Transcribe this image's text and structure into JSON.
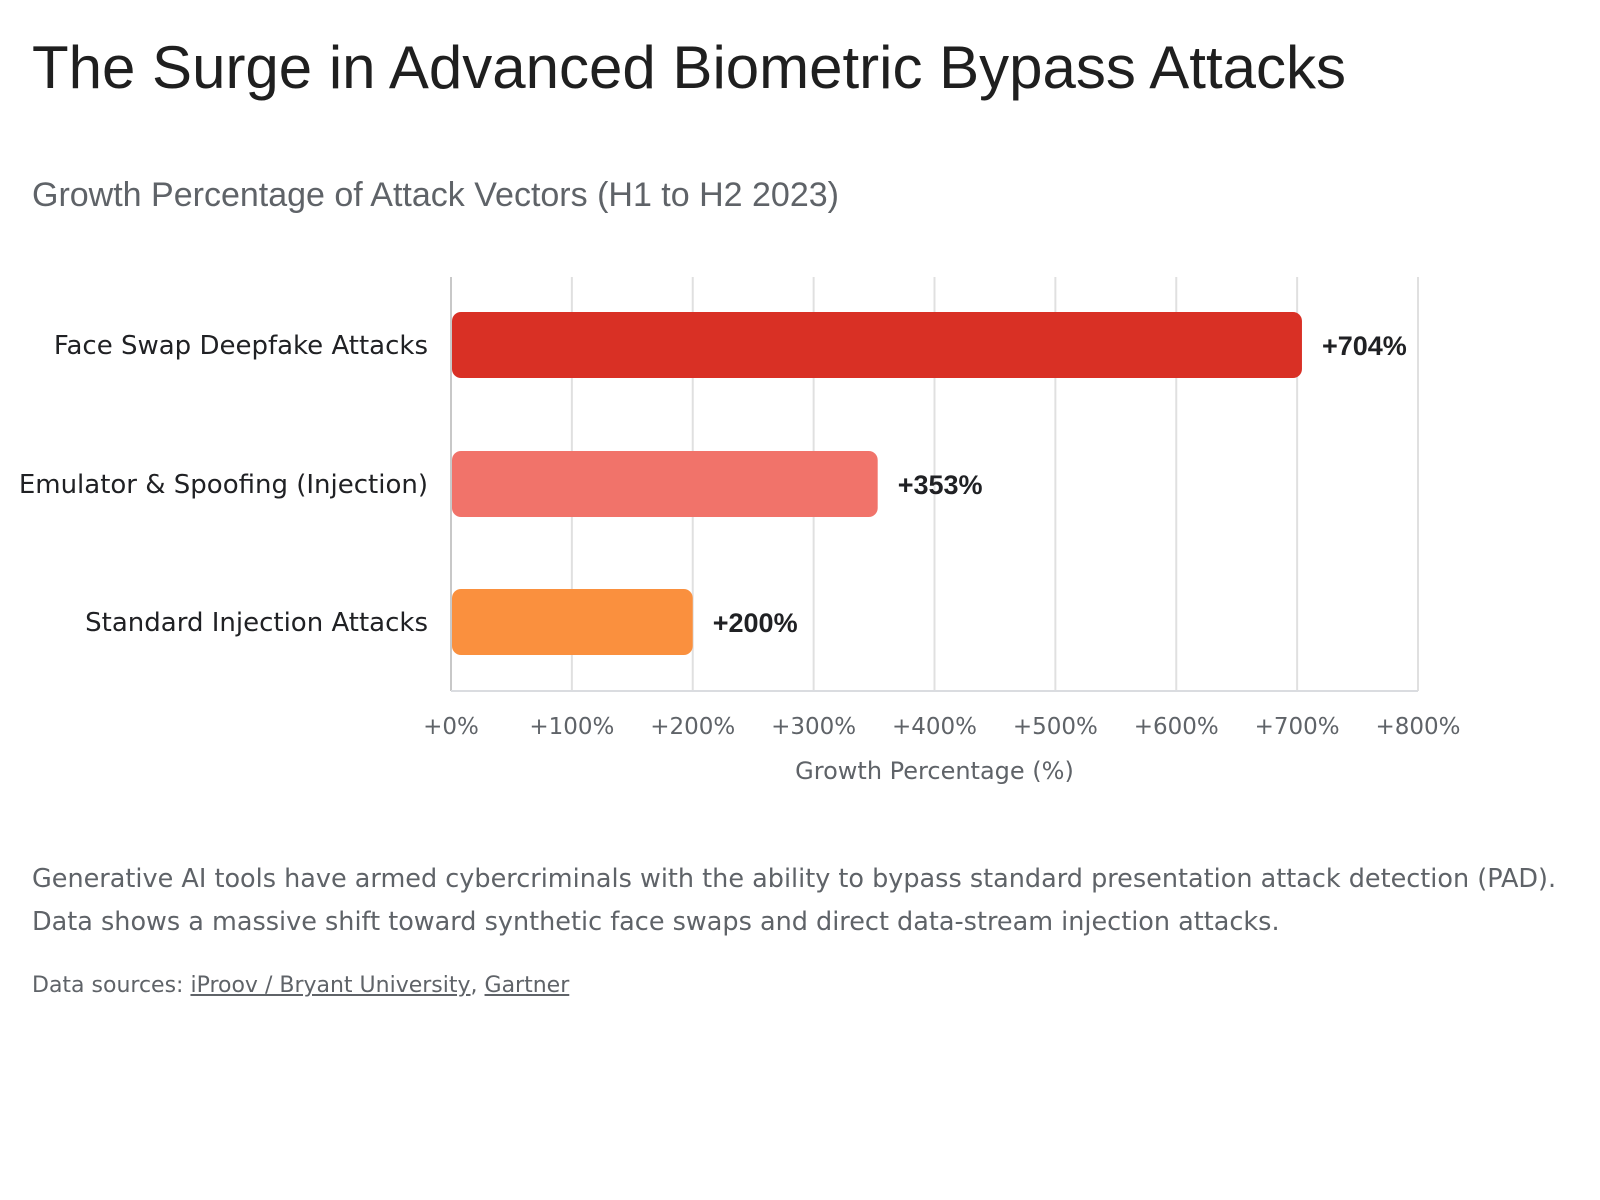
{
  "title": "The Surge in Advanced Biometric Bypass Attacks",
  "subtitle": "Growth Percentage of Attack Vectors (H1 to H2 2023)",
  "chart_data": {
    "type": "bar",
    "orientation": "horizontal",
    "categories": [
      "Face Swap Deepfake Attacks",
      "Emulator & Spoofing (Injection)",
      "Standard Injection Attacks"
    ],
    "values": [
      704,
      353,
      200
    ],
    "value_labels": [
      "+704%",
      "+353%",
      "+200%"
    ],
    "colors": [
      "#d93025",
      "#f1736a",
      "#fa903e"
    ],
    "xlabel": "Growth Percentage (%)",
    "ylabel": "",
    "xlim": [
      0,
      800
    ],
    "xticks": [
      0,
      100,
      200,
      300,
      400,
      500,
      600,
      700,
      800
    ],
    "xtick_labels": [
      "+0%",
      "+100%",
      "+200%",
      "+300%",
      "+400%",
      "+500%",
      "+600%",
      "+700%",
      "+800%"
    ],
    "grid": "vertical",
    "legend": "none"
  },
  "description": "Generative AI tools have armed cybercriminals with the ability to bypass standard presentation attack detection (PAD). Data shows a massive shift toward synthetic face swaps and direct data-stream injection attacks.",
  "sources": {
    "prefix": "Data sources: ",
    "links": [
      "iProov / Bryant University",
      "Gartner"
    ],
    "separator": ", "
  }
}
